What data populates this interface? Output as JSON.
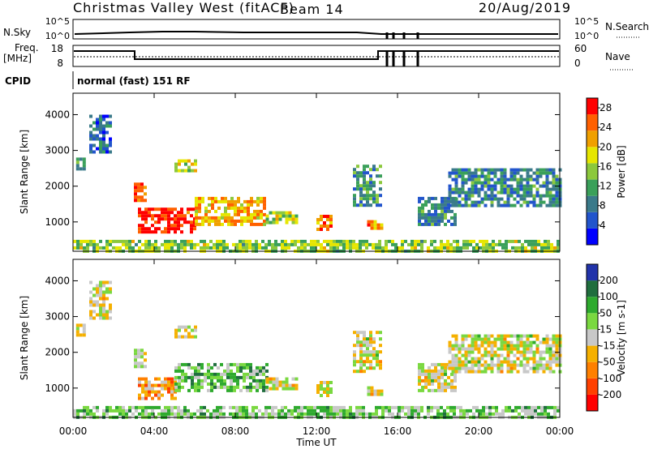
{
  "header": {
    "title": "Christmas Valley West (fitACF)",
    "beam": "Beam 14",
    "date": "20/Aug/2019"
  },
  "top_panels": {
    "nsky_label": "N.Sky",
    "nsearch_label": "N.Search",
    "noise_ticks": [
      "10^5",
      "10^0"
    ],
    "freq_label_1": "Freq.",
    "freq_label_2": "[MHz]",
    "freq_ticks": [
      "18",
      "8"
    ],
    "nave_label": "Nave",
    "nave_ticks": [
      "60",
      "0"
    ],
    "cpid_label": "CPID",
    "cpid_value": "normal (fast) 151 RF"
  },
  "chart_data": [
    {
      "type": "heatmap",
      "name": "power",
      "xlabel": "",
      "ylabel": "Slant Range [km]",
      "x_ticks": [
        "00:00",
        "04:00",
        "08:00",
        "12:00",
        "16:00",
        "20:00",
        "00:00"
      ],
      "x_range_hours": [
        0,
        24
      ],
      "y_range_km": [
        180,
        4600
      ],
      "y_ticks": [
        1000,
        2000,
        3000,
        4000
      ],
      "colorbar": {
        "label": "Power [dB]",
        "ticks": [
          4,
          8,
          12,
          16,
          20,
          24,
          28
        ],
        "range": [
          0,
          30
        ],
        "colors": [
          "#0000ff",
          "#2255cc",
          "#3a7a8a",
          "#3aa05a",
          "#8cc83c",
          "#e6e600",
          "#f0a000",
          "#ff6000",
          "#ff0000"
        ]
      },
      "regions": [
        {
          "t": [
            0.8,
            1.8
          ],
          "r": [
            3000,
            4000
          ],
          "level": 0.25
        },
        {
          "t": [
            0.15,
            0.6
          ],
          "r": [
            2500,
            2800
          ],
          "level": 0.4
        },
        {
          "t": [
            3.0,
            3.6
          ],
          "r": [
            1600,
            2100
          ],
          "level": 0.8
        },
        {
          "t": [
            5.0,
            6.0
          ],
          "r": [
            2400,
            2750
          ],
          "level": 0.6
        },
        {
          "t": [
            3.2,
            6.0
          ],
          "r": [
            700,
            1400
          ],
          "level": 0.95
        },
        {
          "t": [
            6.0,
            9.5
          ],
          "r": [
            900,
            1700
          ],
          "level": 0.7
        },
        {
          "t": [
            9.5,
            11.0
          ],
          "r": [
            950,
            1300
          ],
          "level": 0.55
        },
        {
          "t": [
            12.0,
            12.8
          ],
          "r": [
            800,
            1200
          ],
          "level": 0.8
        },
        {
          "t": [
            14.5,
            15.2
          ],
          "r": [
            800,
            1050
          ],
          "level": 0.75
        },
        {
          "t": [
            13.8,
            15.2
          ],
          "r": [
            1500,
            2600
          ],
          "level": 0.35
        },
        {
          "t": [
            17.0,
            18.8
          ],
          "r": [
            900,
            1700
          ],
          "level": 0.3
        },
        {
          "t": [
            18.5,
            24.0
          ],
          "r": [
            1500,
            2500
          ],
          "level": 0.3
        },
        {
          "t": [
            0.0,
            24.0
          ],
          "r": [
            180,
            500
          ],
          "level": 0.5
        }
      ]
    },
    {
      "type": "heatmap",
      "name": "velocity",
      "xlabel": "Time UT",
      "ylabel": "Slant Range [km]",
      "x_ticks": [
        "00:00",
        "04:00",
        "08:00",
        "12:00",
        "16:00",
        "20:00",
        "00:00"
      ],
      "x_range_hours": [
        0,
        24
      ],
      "y_range_km": [
        180,
        4600
      ],
      "y_ticks": [
        1000,
        2000,
        3000,
        4000
      ],
      "colorbar": {
        "label": "Velocity [m s-1]",
        "ticks": [
          200,
          100,
          50,
          15,
          -15,
          -50,
          -100,
          -200
        ],
        "range": [
          -250,
          250
        ],
        "colors": [
          "#ff0000",
          "#ff4000",
          "#ff8000",
          "#f5b000",
          "#c8c8c8",
          "#7ad840",
          "#2eaa2e",
          "#206e3e",
          "#2233aa"
        ]
      },
      "regions": [
        {
          "t": [
            0.8,
            1.8
          ],
          "r": [
            3000,
            4000
          ],
          "level": 0.5
        },
        {
          "t": [
            0.15,
            0.6
          ],
          "r": [
            2500,
            2800
          ],
          "level": 0.5
        },
        {
          "t": [
            3.0,
            3.6
          ],
          "r": [
            1600,
            2100
          ],
          "level": 0.5
        },
        {
          "t": [
            5.0,
            6.0
          ],
          "r": [
            2400,
            2750
          ],
          "level": 0.5
        },
        {
          "t": [
            3.2,
            5.0
          ],
          "r": [
            700,
            1300
          ],
          "level": 0.35
        },
        {
          "t": [
            5.0,
            9.5
          ],
          "r": [
            900,
            1700
          ],
          "level": 0.65
        },
        {
          "t": [
            9.5,
            11.0
          ],
          "r": [
            950,
            1300
          ],
          "level": 0.5
        },
        {
          "t": [
            12.0,
            12.8
          ],
          "r": [
            800,
            1200
          ],
          "level": 0.5
        },
        {
          "t": [
            14.5,
            15.2
          ],
          "r": [
            800,
            1050
          ],
          "level": 0.5
        },
        {
          "t": [
            13.8,
            15.2
          ],
          "r": [
            1500,
            2600
          ],
          "level": 0.5
        },
        {
          "t": [
            17.0,
            18.8
          ],
          "r": [
            900,
            1700
          ],
          "level": 0.5
        },
        {
          "t": [
            18.5,
            24.0
          ],
          "r": [
            1500,
            2500
          ],
          "level": 0.5
        },
        {
          "t": [
            0.0,
            24.0
          ],
          "r": [
            180,
            500
          ],
          "level": 0.62
        }
      ]
    }
  ]
}
